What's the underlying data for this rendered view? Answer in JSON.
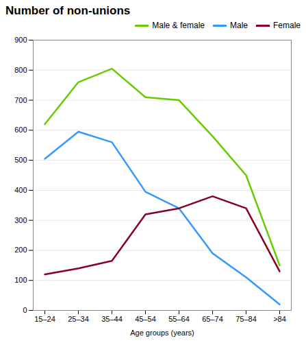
{
  "chart_data": {
    "type": "line",
    "title": "Number of non-unions",
    "xlabel": "Age groups (years)",
    "categories": [
      "15–24",
      "25–34",
      "35–44",
      "45–54",
      "55–64",
      "65–74",
      "75–84",
      ">84"
    ],
    "series": [
      {
        "name": "Male & female",
        "color": "#66cc00",
        "values": [
          620,
          760,
          805,
          710,
          700,
          580,
          450,
          150
        ]
      },
      {
        "name": "Male",
        "color": "#3399ff",
        "values": [
          505,
          595,
          560,
          395,
          340,
          190,
          110,
          20
        ]
      },
      {
        "name": "Female",
        "color": "#880022",
        "values": [
          120,
          140,
          165,
          320,
          340,
          380,
          340,
          130
        ]
      }
    ],
    "ylim": [
      0,
      900
    ],
    "yticks": [
      0,
      100,
      200,
      300,
      400,
      500,
      600,
      700,
      800,
      900
    ],
    "grid": true,
    "legend": "upper right"
  }
}
